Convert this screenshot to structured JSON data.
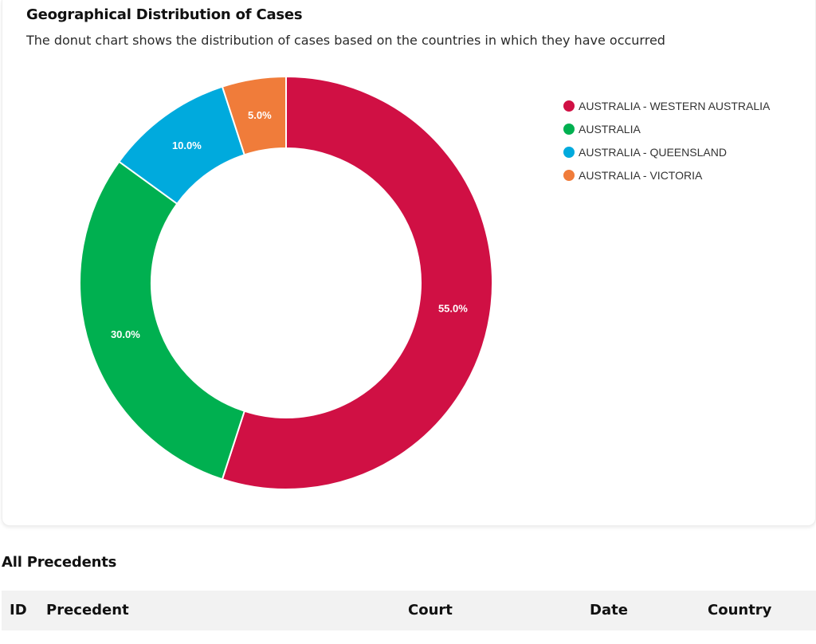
{
  "card": {
    "title": "Geographical Distribution of Cases",
    "subtitle": "The donut chart shows the distribution of cases based on the countries in which they have occurred"
  },
  "chart_data": {
    "type": "pie",
    "variant": "donut",
    "categories": [
      "AUSTRALIA - WESTERN AUSTRALIA",
      "AUSTRALIA",
      "AUSTRALIA - QUEENSLAND",
      "AUSTRALIA - VICTORIA"
    ],
    "values": [
      55.0,
      30.0,
      10.0,
      5.0
    ],
    "value_labels": [
      "55.0%",
      "30.0%",
      "10.0%",
      "5.0%"
    ],
    "colors": [
      "#d01044",
      "#00b050",
      "#00aadd",
      "#f07c3a"
    ],
    "legend_position": "right",
    "start_angle_deg": 0,
    "direction": "clockwise"
  },
  "table": {
    "title": "All Precedents",
    "columns": [
      "ID",
      "Precedent",
      "Court",
      "Date",
      "Country"
    ]
  }
}
